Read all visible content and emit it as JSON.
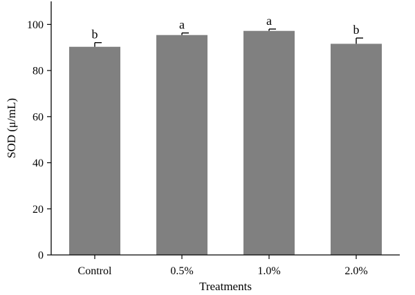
{
  "chart_data": {
    "type": "bar",
    "title": "",
    "xlabel": "Treatments",
    "ylabel": "SOD (μ/mL)",
    "categories": [
      "Control",
      "0.5%",
      "1.0%",
      "2.0%"
    ],
    "values": [
      90.3,
      95.4,
      97.2,
      91.6
    ],
    "error": [
      1.8,
      0.9,
      0.8,
      2.5
    ],
    "significance": [
      "b",
      "a",
      "a",
      "b"
    ],
    "ylim": [
      0,
      110
    ],
    "yticks": [
      0,
      20,
      40,
      60,
      80,
      100
    ],
    "bar_color": "#808080",
    "grid": false,
    "legend": "none"
  }
}
